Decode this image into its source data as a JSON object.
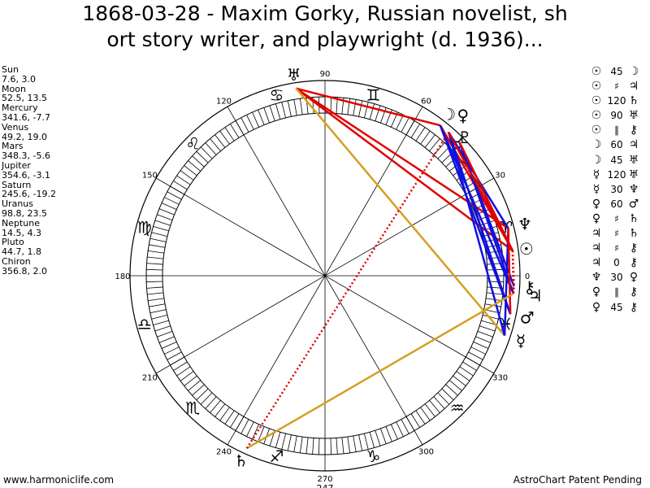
{
  "title": {
    "line1": "1868-03-28 - Maxim Gorky, Russian novelist, sh",
    "line2": "ort story writer, and playwright (d. 1936)..."
  },
  "planet_list": [
    {
      "name": "Sun",
      "coords": "7.6, 3.0"
    },
    {
      "name": "Moon",
      "coords": "52.5, 13.5"
    },
    {
      "name": "Mercury",
      "coords": "341.6, -7.7"
    },
    {
      "name": "Venus",
      "coords": "49.2, 19.0"
    },
    {
      "name": "Mars",
      "coords": "348.3, -5.6"
    },
    {
      "name": "Jupiter",
      "coords": "354.6, -3.1"
    },
    {
      "name": "Saturn",
      "coords": "245.6, -19.2"
    },
    {
      "name": "Uranus",
      "coords": "98.8, 23.5"
    },
    {
      "name": "Neptune",
      "coords": "14.5, 4.3"
    },
    {
      "name": "Pluto",
      "coords": "44.7, 1.8"
    },
    {
      "name": "Chiron",
      "coords": "356.8, 2.0"
    }
  ],
  "aspects": [
    {
      "p1": "☉",
      "symbol": "45",
      "p2": "☽"
    },
    {
      "p1": "☉",
      "symbol": "♯",
      "p2": "♃"
    },
    {
      "p1": "☉",
      "symbol": "120",
      "p2": "♄"
    },
    {
      "p1": "☉",
      "symbol": "90",
      "p2": "♅"
    },
    {
      "p1": "☉",
      "symbol": "∥",
      "p2": "⚷"
    },
    {
      "p1": "☽",
      "symbol": "60",
      "p2": "♃"
    },
    {
      "p1": "☽",
      "symbol": "45",
      "p2": "♅"
    },
    {
      "p1": "☿",
      "symbol": "120",
      "p2": "♅"
    },
    {
      "p1": "☿",
      "symbol": "30",
      "p2": "♆"
    },
    {
      "p1": "♀",
      "symbol": "60",
      "p2": "♂"
    },
    {
      "p1": "♀",
      "symbol": "♯",
      "p2": "♄"
    },
    {
      "p1": "♃",
      "symbol": "♯",
      "p2": "♄"
    },
    {
      "p1": "♃",
      "symbol": "♯",
      "p2": "⚷"
    },
    {
      "p1": "♃",
      "symbol": "0",
      "p2": "⚷"
    },
    {
      "p1": "♆",
      "symbol": "30",
      "p2": "♀"
    },
    {
      "p1": "♀",
      "symbol": "∥",
      "p2": "⚷"
    },
    {
      "p1": "♀",
      "symbol": "45",
      "p2": "⚷"
    }
  ],
  "wheel": {
    "degree_labels": [
      "0",
      "30",
      "60",
      "90",
      "120",
      "150",
      "180",
      "210",
      "240",
      "270",
      "300",
      "330"
    ],
    "extra_label": "247",
    "zodiac_signs": [
      {
        "name": "aries",
        "glyph": "♈",
        "lon": 15
      },
      {
        "name": "taurus",
        "glyph": "♉",
        "lon": 45
      },
      {
        "name": "gemini",
        "glyph": "♊",
        "lon": 75
      },
      {
        "name": "cancer",
        "glyph": "♋",
        "lon": 105
      },
      {
        "name": "leo",
        "glyph": "♌",
        "lon": 135
      },
      {
        "name": "virgo",
        "glyph": "♍",
        "lon": 165
      },
      {
        "name": "libra",
        "glyph": "♎",
        "lon": 195
      },
      {
        "name": "scorpio",
        "glyph": "♏",
        "lon": 225
      },
      {
        "name": "sagittarius",
        "glyph": "♐",
        "lon": 255
      },
      {
        "name": "capricorn",
        "glyph": "♑",
        "lon": 285
      },
      {
        "name": "aquarius",
        "glyph": "♒",
        "lon": 315
      },
      {
        "name": "pisces",
        "glyph": "♓",
        "lon": 345
      }
    ],
    "planets": [
      {
        "name": "sun",
        "glyph": "☉",
        "lon": 7.6
      },
      {
        "name": "moon",
        "glyph": "☽",
        "lon": 52.5
      },
      {
        "name": "mercury",
        "glyph": "☿",
        "lon": 341.6
      },
      {
        "name": "venus",
        "glyph": "♀",
        "lon": 49.2
      },
      {
        "name": "mars",
        "glyph": "♂",
        "lon": 348.3
      },
      {
        "name": "jupiter",
        "glyph": "♃",
        "lon": 354.6
      },
      {
        "name": "saturn",
        "glyph": "♄",
        "lon": 245.6
      },
      {
        "name": "uranus",
        "glyph": "♅",
        "lon": 98.8
      },
      {
        "name": "neptune",
        "glyph": "♆",
        "lon": 14.5
      },
      {
        "name": "pluto",
        "glyph": "♇",
        "lon": 44.7
      },
      {
        "name": "chiron",
        "glyph": "⚷",
        "lon": 356.8
      }
    ],
    "aspect_lines": [
      {
        "a": "uranus",
        "b": "moon",
        "color": "#e00000",
        "style": "solid"
      },
      {
        "a": "uranus",
        "b": "neptune",
        "color": "#e00000",
        "style": "solid"
      },
      {
        "a": "uranus",
        "b": "sun",
        "color": "#e00000",
        "style": "solid"
      },
      {
        "a": "uranus",
        "b": "mercury",
        "color": "#d4a020",
        "style": "solid"
      },
      {
        "a": "moon",
        "b": "sun",
        "color": "#e00000",
        "style": "solid"
      },
      {
        "a": "moon",
        "b": "jupiter",
        "color": "#1010e0",
        "style": "solid"
      },
      {
        "a": "moon",
        "b": "mars",
        "color": "#1010e0",
        "style": "solid"
      },
      {
        "a": "venus",
        "b": "mars",
        "color": "#1010e0",
        "style": "solid"
      },
      {
        "a": "venus",
        "b": "mercury",
        "color": "#1010e0",
        "style": "solid"
      },
      {
        "a": "pluto",
        "b": "jupiter",
        "color": "#1010e0",
        "style": "solid"
      },
      {
        "a": "pluto",
        "b": "chiron",
        "color": "#1010e0",
        "style": "solid"
      },
      {
        "a": "neptune",
        "b": "mercury",
        "color": "#1010e0",
        "style": "solid"
      },
      {
        "a": "neptune",
        "b": "venus",
        "color": "#1010e0",
        "style": "solid"
      },
      {
        "a": "sun",
        "b": "pluto",
        "color": "#e00000",
        "style": "solid"
      },
      {
        "a": "venus",
        "b": "sun",
        "color": "#e00000",
        "style": "solid"
      },
      {
        "a": "mars",
        "b": "neptune",
        "color": "#e00000",
        "style": "solid"
      },
      {
        "a": "saturn",
        "b": "jupiter",
        "color": "#d4a020",
        "style": "solid"
      },
      {
        "a": "saturn",
        "b": "venus",
        "color": "#e00000",
        "style": "dotted"
      },
      {
        "a": "sun",
        "b": "jupiter",
        "color": "#e00000",
        "style": "dotted"
      },
      {
        "a": "sun",
        "b": "chiron",
        "color": "#e00000",
        "style": "dotted"
      },
      {
        "a": "jupiter",
        "b": "chiron",
        "color": "#e00000",
        "style": "dotted"
      }
    ]
  },
  "footer": {
    "left": "www.harmoniclife.com",
    "right": "AstroChart Patent Pending"
  }
}
